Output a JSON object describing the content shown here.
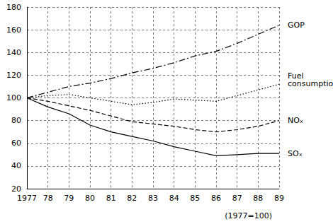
{
  "chart_data": {
    "type": "line",
    "categories": [
      "1977",
      "78",
      "79",
      "80",
      "81",
      "82",
      "83",
      "84",
      "85",
      "86",
      "87",
      "88",
      "89"
    ],
    "series": [
      {
        "name": "GOP",
        "color": "#000000",
        "line_style": "dashdot",
        "values": [
          100,
          105,
          110,
          113,
          117,
          122,
          126,
          131,
          137,
          141,
          148,
          156,
          164
        ]
      },
      {
        "name": "Fuel consumption",
        "color": "#000000",
        "line_style": "dotted",
        "values": [
          100,
          102,
          103,
          100,
          97,
          94,
          96,
          99,
          98,
          97,
          102,
          107,
          112
        ]
      },
      {
        "name": "NOₓ",
        "color": "#000000",
        "line_style": "dashed",
        "values": [
          100,
          97,
          93,
          89,
          84,
          79,
          77,
          75,
          72,
          70,
          72,
          75,
          80
        ]
      },
      {
        "name": "SOₓ",
        "color": "#000000",
        "line_style": "solid",
        "values": [
          100,
          92,
          86,
          76,
          70,
          66,
          62,
          57,
          53,
          49,
          50,
          51,
          51
        ]
      }
    ],
    "ylim": [
      20,
      180
    ],
    "yticks": [
      20,
      40,
      60,
      80,
      100,
      120,
      140,
      160,
      180
    ],
    "grid": true,
    "annotation": "(1977=100)"
  }
}
